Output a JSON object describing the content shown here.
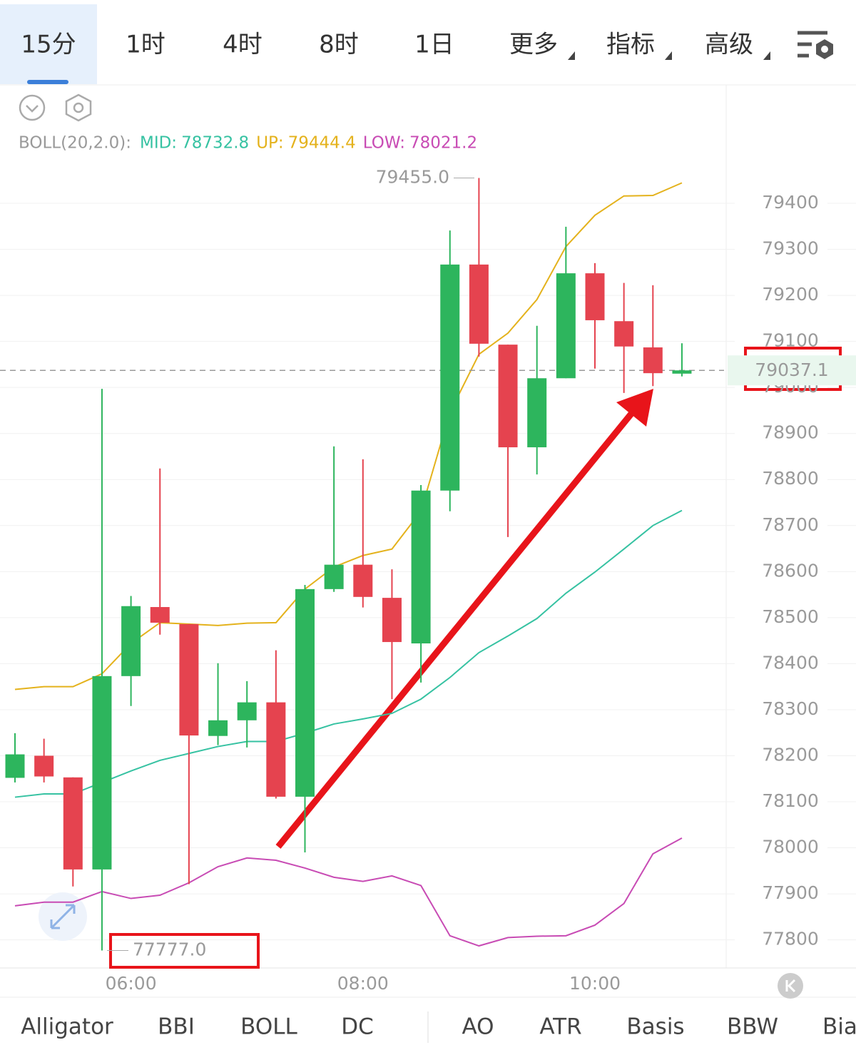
{
  "tabs": [
    "15分",
    "1时",
    "4时",
    "8时",
    "1日",
    "更多",
    "指标",
    "高级"
  ],
  "active_tab": 0,
  "indicator_tabs": [
    "Alligator",
    "BBI",
    "BOLL",
    "DC",
    "AO",
    "ATR",
    "Basis",
    "BBW",
    "Bias"
  ],
  "active_indicator": 2,
  "chart_data": {
    "type": "candlestick",
    "indicator": "BOLL(20,2.0):",
    "up_color": "#2db55d",
    "down_color": "#e5434f",
    "categories": [
      null,
      null,
      null,
      null,
      "06:00",
      null,
      null,
      null,
      null,
      null,
      null,
      null,
      "08:00",
      null,
      null,
      null,
      null,
      null,
      null,
      null,
      "10:00",
      null,
      null,
      null
    ],
    "candles": [
      {
        "open": 78152,
        "high": 78249,
        "low": 78142,
        "close": 78203
      },
      {
        "open": 78200,
        "high": 78237,
        "low": 78142,
        "close": 78155
      },
      {
        "open": 78153,
        "high": 78153,
        "low": 77916,
        "close": 77953
      },
      {
        "open": 77953,
        "high": 78997,
        "low": 77777,
        "close": 78373
      },
      {
        "open": 78373,
        "high": 78547,
        "low": 78308,
        "close": 78525
      },
      {
        "open": 78523,
        "high": 78824,
        "low": 78463,
        "close": 78489
      },
      {
        "open": 78486,
        "high": 78486,
        "low": 77921,
        "close": 78244
      },
      {
        "open": 78243,
        "high": 78401,
        "low": 78223,
        "close": 78277
      },
      {
        "open": 78277,
        "high": 78362,
        "low": 78218,
        "close": 78316
      },
      {
        "open": 78316,
        "high": 78429,
        "low": 78107,
        "close": 78111
      },
      {
        "open": 78111,
        "high": 78571,
        "low": 77990,
        "close": 78562
      },
      {
        "open": 78562,
        "high": 78872,
        "low": 78556,
        "close": 78615
      },
      {
        "open": 78615,
        "high": 78844,
        "low": 78522,
        "close": 78545
      },
      {
        "open": 78543,
        "high": 78605,
        "low": 78323,
        "close": 78447
      },
      {
        "open": 78444,
        "high": 78788,
        "low": 78359,
        "close": 78776
      },
      {
        "open": 78776,
        "high": 79341,
        "low": 78731,
        "close": 79267
      },
      {
        "open": 79267,
        "high": 79455,
        "low": 79067,
        "close": 79095
      },
      {
        "open": 79093,
        "high": 79093,
        "low": 78675,
        "close": 78870
      },
      {
        "open": 78870,
        "high": 79134,
        "low": 78811,
        "close": 79020
      },
      {
        "open": 79020,
        "high": 79349,
        "low": 79020,
        "close": 79248
      },
      {
        "open": 79248,
        "high": 79270,
        "low": 79041,
        "close": 79146
      },
      {
        "open": 79144,
        "high": 79227,
        "low": 78988,
        "close": 79089
      },
      {
        "open": 79087,
        "high": 79222,
        "low": 79003,
        "close": 79031
      },
      {
        "open": 79030,
        "high": 79096,
        "low": 79024,
        "close": 79037.1
      }
    ],
    "series": [
      {
        "name": "MID:",
        "color": "#36c2a2",
        "values": [
          78110,
          78117,
          78117,
          78142,
          78167,
          78190,
          78205,
          78220,
          78231,
          78231,
          78249,
          78269,
          78280,
          78292,
          78323,
          78370,
          78424,
          78460,
          78498,
          78553,
          78599,
          78649,
          78700,
          78732.8
        ]
      },
      {
        "name": "UP:",
        "color": "#e4b21c",
        "values": [
          78344,
          78350,
          78350,
          78378,
          78444,
          78489,
          78486,
          78483,
          78488,
          78489,
          78562,
          78610,
          78635,
          78649,
          78731,
          78946,
          79072,
          79118,
          79191,
          79306,
          79374,
          79416,
          79417,
          79444.4
        ]
      },
      {
        "name": "LOW:",
        "color": "#c84bb4",
        "values": [
          77874,
          77882,
          77882,
          77905,
          77890,
          77897,
          77924,
          77959,
          77978,
          77973,
          77956,
          77936,
          77927,
          77939,
          77918,
          77809,
          77787,
          77805,
          77808,
          77809,
          77832,
          77879,
          77987,
          78021.2
        ]
      }
    ],
    "high_label": {
      "value": 79455,
      "label": "79455.0"
    },
    "low_label": {
      "value": 77777,
      "label": "77777.0"
    },
    "last_price": {
      "value": 79037.1,
      "label": "79037.1"
    },
    "ylim": [
      77739,
      79493
    ],
    "yticks": [
      77800,
      77900,
      78000,
      78100,
      78200,
      78300,
      78400,
      78500,
      78600,
      78700,
      78800,
      78900,
      79000,
      79100,
      79200,
      79300,
      79400
    ],
    "grid": true
  }
}
